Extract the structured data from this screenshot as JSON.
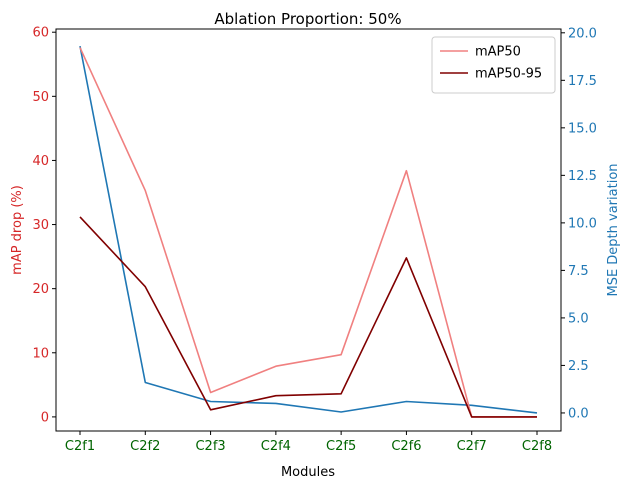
{
  "chart_data": {
    "type": "line",
    "title": "Ablation Proportion: 50%",
    "xlabel": "Modules",
    "ylabel_left": "mAP drop (%)",
    "ylabel_right": "MSE Depth variation",
    "categories": [
      "C2f1",
      "C2f2",
      "C2f3",
      "C2f4",
      "C2f5",
      "C2f6",
      "C2f7",
      "C2f8"
    ],
    "ylim_left": [
      -2.2,
      60.5
    ],
    "ylim_right": [
      -0.95,
      20.2
    ],
    "yticks_left": [
      0,
      10,
      20,
      30,
      40,
      50,
      60
    ],
    "yticks_right": [
      0.0,
      2.5,
      5.0,
      7.5,
      10.0,
      12.5,
      15.0,
      17.5,
      20.0
    ],
    "series": [
      {
        "name": "mAP50",
        "axis": "left",
        "color": "#f08080",
        "values": [
          57.6,
          35.3,
          3.8,
          7.9,
          9.7,
          38.4,
          0.0,
          0.0
        ]
      },
      {
        "name": "mAP50-95",
        "axis": "left",
        "color": "#800000",
        "values": [
          31.2,
          20.3,
          1.1,
          3.3,
          3.6,
          24.8,
          0.0,
          0.0
        ]
      },
      {
        "axis": "right",
        "color": "#1f77b4",
        "values": [
          19.3,
          1.6,
          0.6,
          0.5,
          0.05,
          0.6,
          0.4,
          0.0
        ]
      }
    ],
    "legend": {
      "placement": "top-right",
      "entries": [
        "mAP50",
        "mAP50-95"
      ]
    },
    "grid": false,
    "colors": {
      "left_axis": "#d62728",
      "right_axis": "#1f77b4",
      "x_ticks": "#006400"
    }
  }
}
